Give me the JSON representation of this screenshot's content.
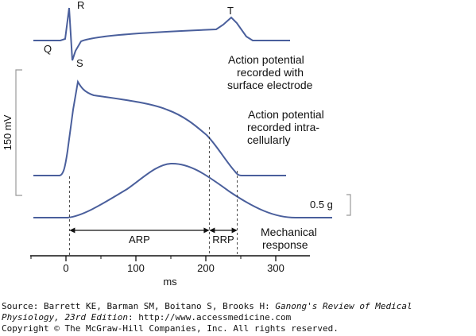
{
  "colors": {
    "trace": "#4a5f9c",
    "axis": "#111111",
    "guide": "#333333",
    "bracket": "#999999"
  },
  "ecg": {
    "labels": {
      "q": "Q",
      "r": "R",
      "s": "S",
      "t": "T"
    },
    "caption": [
      "Action potential",
      "recorded with",
      "surface electrode"
    ]
  },
  "intracellular": {
    "caption": [
      "Action potential",
      "recorded intra-",
      "cellularly"
    ]
  },
  "mechanical": {
    "caption": [
      "Mechanical",
      "response"
    ]
  },
  "scale": {
    "voltage": "150 mV",
    "force": "0.5 g"
  },
  "periods": {
    "arp": "ARP",
    "rrp": "RRP"
  },
  "axis": {
    "unit": "ms",
    "ticks": [
      "0",
      "100",
      "200",
      "300"
    ],
    "tick_values": [
      0,
      100,
      200,
      300
    ],
    "xlim": [
      -45,
      390
    ]
  },
  "markers_ms": [
    5,
    205,
    245
  ],
  "source": {
    "line1_prefix": "Source: Barrett KE, Barman SM, Boitano S, Brooks H: ",
    "line1_title": "Ganong's Review of Medical",
    "line2_title": "Physiology, 23rd Edition",
    "line2_suffix": ": http://www.accessmedicine.com",
    "copyright": "Copyright © The McGraw-Hill Companies, Inc. All rights reserved."
  }
}
